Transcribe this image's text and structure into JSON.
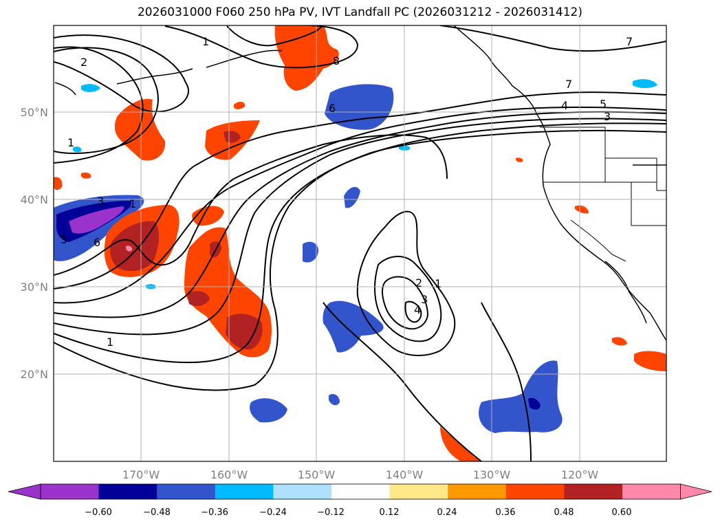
{
  "title": "2026031000 F060 250 hPa PV, IVT Landfall PC (2026031212 - 2026031412)",
  "map": {
    "lat_labels": [
      "50°N",
      "40°N",
      "30°N",
      "20°N"
    ],
    "lon_labels": [
      "170°W",
      "160°W",
      "150°W",
      "140°W",
      "130°W",
      "120°W"
    ],
    "contour_labels": [
      "1",
      "2",
      "1",
      "8",
      "6",
      "7",
      "4",
      "5",
      "3",
      "7",
      "1",
      "3",
      "6",
      "5",
      "2",
      "1",
      "3",
      "4",
      "1"
    ]
  },
  "colorbar": {
    "ticks": [
      "−0.60",
      "−0.48",
      "−0.36",
      "−0.24",
      "−0.12",
      "0.12",
      "0.24",
      "0.36",
      "0.48",
      "0.60"
    ],
    "colors": {
      "under": "#9933cc",
      "bins": [
        "#9933cc",
        "#000099",
        "#3355cc",
        "#00bbff",
        "#aee0ff",
        "#ffffff",
        "#ffe888",
        "#ff9900",
        "#ff4400",
        "#b22222",
        "#ff88aa"
      ],
      "over": "#ff88aa"
    }
  }
}
